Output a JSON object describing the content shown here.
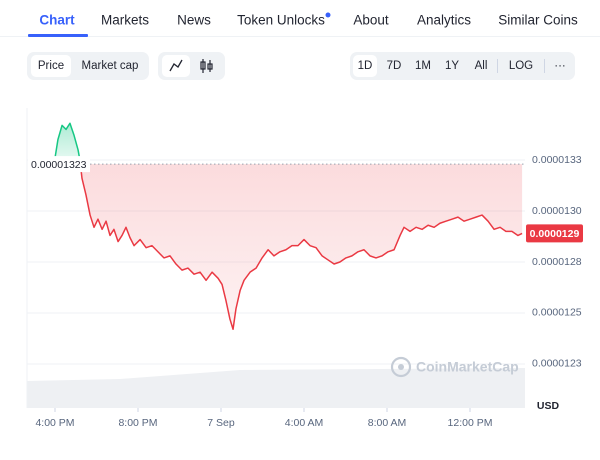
{
  "tabs": [
    "Chart",
    "Markets",
    "News",
    "Token Unlocks",
    "About",
    "Analytics",
    "Similar Coins"
  ],
  "toolbar": {
    "series_buttons": [
      "Price",
      "Market cap"
    ],
    "range_buttons": [
      "1D",
      "7D",
      "1M",
      "1Y",
      "All"
    ],
    "scale_button": "LOG",
    "more_button": "···"
  },
  "chart_data": {
    "type": "line",
    "watermark": "CoinMarketCap",
    "y_unit": "USD",
    "up_color": "#16c784",
    "down_color": "#ea3943",
    "reference": 1.323e-05,
    "current_price_label": "0.0000129",
    "grid": true,
    "xlim": [
      -1.35,
      22.65
    ],
    "ylim": [
      1.2034e-05,
      1.3505e-05
    ],
    "xticks": [
      {
        "value": 0,
        "label": "4:00 PM"
      },
      {
        "value": 4,
        "label": "8:00 PM"
      },
      {
        "value": 8,
        "label": "7 Sep"
      },
      {
        "value": 12,
        "label": "4:00 AM"
      },
      {
        "value": 16,
        "label": "8:00 AM"
      },
      {
        "value": 20,
        "label": "12:00 PM"
      }
    ],
    "yticks": [
      {
        "value": 1.325e-05,
        "label": "0.0000133"
      },
      {
        "value": 1.3e-05,
        "label": "0.0000130"
      },
      {
        "value": 1.275e-05,
        "label": "0.0000128"
      },
      {
        "value": 1.25e-05,
        "label": "0.0000125"
      },
      {
        "value": 1.225e-05,
        "label": "0.0000123"
      }
    ],
    "series": [
      {
        "name": "Price",
        "x": [
          0,
          0.14,
          0.34,
          0.53,
          0.72,
          0.92,
          1.11,
          1.2,
          1.3,
          1.49,
          1.69,
          1.88,
          2.07,
          2.27,
          2.46,
          2.65,
          2.84,
          3.04,
          3.23,
          3.42,
          3.61,
          3.81,
          4.1,
          4.39,
          4.67,
          4.96,
          5.25,
          5.54,
          5.83,
          6.12,
          6.41,
          6.7,
          6.99,
          7.28,
          7.57,
          7.86,
          8.05,
          8.24,
          8.43,
          8.58,
          8.72,
          8.92,
          9.11,
          9.4,
          9.69,
          9.98,
          10.27,
          10.55,
          10.84,
          11.13,
          11.42,
          11.71,
          12,
          12.29,
          12.58,
          12.87,
          13.16,
          13.45,
          13.73,
          14.02,
          14.31,
          14.6,
          14.89,
          15.18,
          15.47,
          15.76,
          16.05,
          16.34,
          16.63,
          16.82,
          17.11,
          17.4,
          17.69,
          17.98,
          18.27,
          18.55,
          18.84,
          19.13,
          19.42,
          19.71,
          20,
          20.29,
          20.58,
          20.87,
          21.16,
          21.45,
          21.73,
          22.02,
          22.31,
          22.51
        ],
        "values": [
          1.326e-05,
          1.335e-05,
          1.342e-05,
          1.34e-05,
          1.343e-05,
          1.337e-05,
          1.33e-05,
          1.325e-05,
          1.316e-05,
          1.308e-05,
          1.298e-05,
          1.292e-05,
          1.296e-05,
          1.291e-05,
          1.295e-05,
          1.288e-05,
          1.291e-05,
          1.285e-05,
          1.288e-05,
          1.292e-05,
          1.287e-05,
          1.283e-05,
          1.286e-05,
          1.282e-05,
          1.283e-05,
          1.28e-05,
          1.277e-05,
          1.278e-05,
          1.274e-05,
          1.271e-05,
          1.272e-05,
          1.269e-05,
          1.27e-05,
          1.266e-05,
          1.27e-05,
          1.267e-05,
          1.264e-05,
          1.256e-05,
          1.247e-05,
          1.242e-05,
          1.252e-05,
          1.261e-05,
          1.266e-05,
          1.27e-05,
          1.272e-05,
          1.277e-05,
          1.281e-05,
          1.278e-05,
          1.28e-05,
          1.281e-05,
          1.283e-05,
          1.283e-05,
          1.286e-05,
          1.283e-05,
          1.282e-05,
          1.278e-05,
          1.276e-05,
          1.274e-05,
          1.275e-05,
          1.277e-05,
          1.278e-05,
          1.28e-05,
          1.281e-05,
          1.278e-05,
          1.277e-05,
          1.278e-05,
          1.28e-05,
          1.281e-05,
          1.288e-05,
          1.292e-05,
          1.29e-05,
          1.292e-05,
          1.291e-05,
          1.293e-05,
          1.292e-05,
          1.294e-05,
          1.295e-05,
          1.296e-05,
          1.297e-05,
          1.295e-05,
          1.296e-05,
          1.297e-05,
          1.298e-05,
          1.295e-05,
          1.291e-05,
          1.292e-05,
          1.29e-05,
          1.29e-05,
          1.288e-05,
          1.289e-05
        ]
      }
    ]
  }
}
